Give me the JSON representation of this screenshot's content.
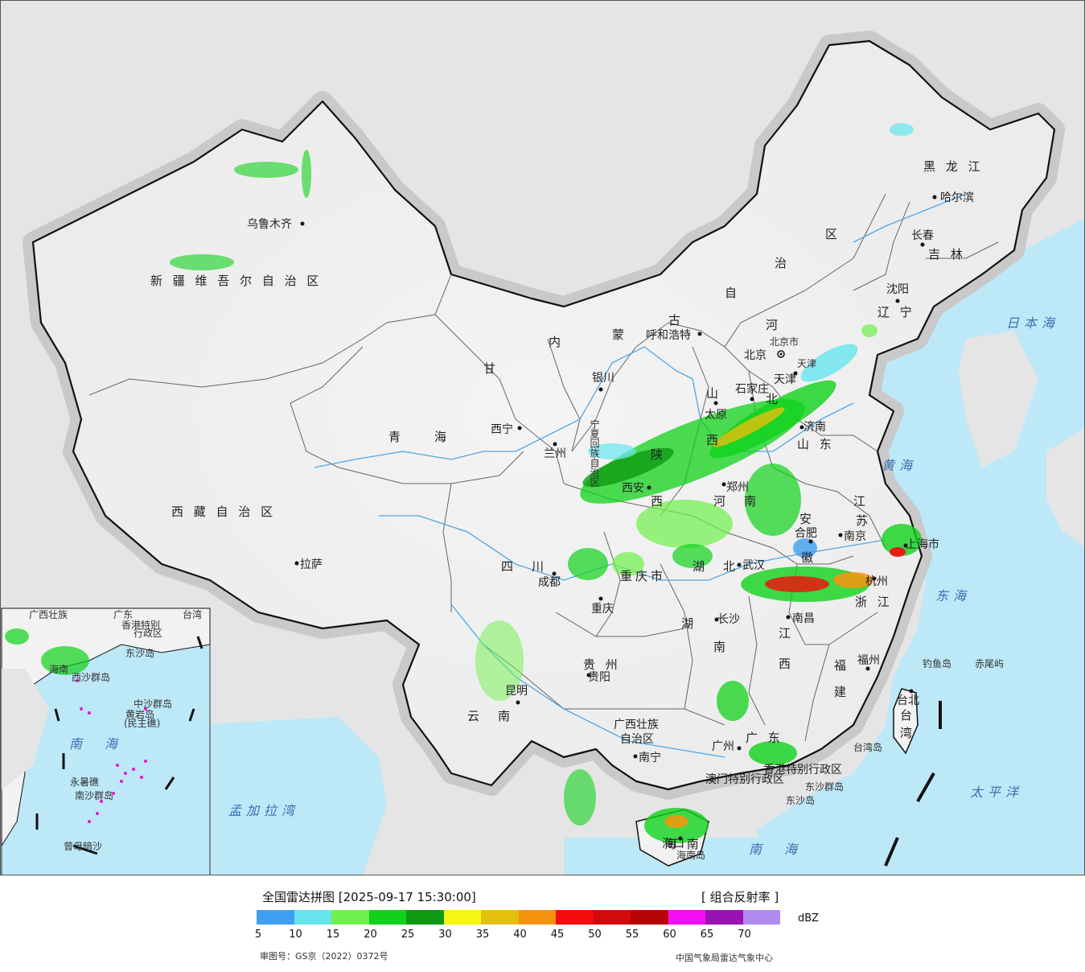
{
  "map": {
    "provinces": {
      "xinjiang": "新 疆 维 吾 尔 自 治 区",
      "xizang": "西 藏 自 治 区",
      "qinghai": "青　　海",
      "gansu": "甘",
      "neimenggu_1": "内",
      "neimenggu_2": "蒙",
      "neimenggu_3": "古",
      "neimenggu_4": "自",
      "neimenggu_5": "治",
      "neimenggu_6": "区",
      "heilongjiang": "黑 龙 江",
      "jilin": "吉 林",
      "liaoning": "辽 宁",
      "hebei_1": "河",
      "hebei_2": "北",
      "shanxi_1": "山",
      "shanxi_2": "西",
      "shandong": "山 东",
      "henan_1": "河",
      "henan_2": "南",
      "shaanxi_1": "陕",
      "shaanxi_2": "西",
      "ningxia": "宁夏回族自治区",
      "sichuan": "四　川",
      "chongqing": "重庆市",
      "hubei": "湖　北",
      "hunan_1": "湖",
      "hunan_2": "南",
      "anhui_1": "安",
      "anhui_2": "徽",
      "jiangsu_1": "江",
      "jiangsu_2": "苏",
      "zhejiang": "浙 江",
      "jiangxi_1": "江",
      "jiangxi_2": "西",
      "fujian_1": "福",
      "fujian_2": "建",
      "guizhou": "贵 州",
      "yunnan": "云　南",
      "guangxi_1": "广西壮族",
      "guangxi_2": "自治区",
      "guangdong": "广 东",
      "hainan": "海 南",
      "taiwan_1": "台",
      "taiwan_2": "湾",
      "shanghai": "上海市",
      "tianjin": "天津",
      "beijing_city": "北京市",
      "hongkong": "香港特别行政区",
      "macau": "澳门特别行政区"
    },
    "cities": {
      "urumqi": "乌鲁木齐",
      "lhasa": "拉萨",
      "xining": "西宁",
      "lanzhou": "兰州",
      "yinchuan": "银川",
      "hohhot": "呼和浩特",
      "beijing": "北京",
      "tianjin": "天津",
      "shijiazhuang": "石家庄",
      "taiyuan": "太原",
      "jinan": "济南",
      "zhengzhou": "郑州",
      "xian": "西安",
      "chengdu": "成都",
      "chongqing": "重庆",
      "wuhan": "武汉",
      "hefei": "合肥",
      "nanjing": "南京",
      "shanghai": "上海",
      "hangzhou": "杭州",
      "changsha": "长沙",
      "nanchang": "南昌",
      "fuzhou": "福州",
      "guiyang": "贵阳",
      "kunming": "昆明",
      "nanning": "南宁",
      "guangzhou": "广州",
      "haikou": "海口",
      "taipei": "台北",
      "harbin": "哈尔滨",
      "changchun": "长春",
      "shenyang": "沈阳"
    },
    "seas": {
      "japan": "日本海",
      "yellow": "黄海",
      "east": "东海",
      "south": "南　海",
      "pacific": "太平洋",
      "bengal": "孟加拉湾"
    },
    "islands": {
      "diaoyu": "钓鱼岛",
      "chiwei": "赤尾屿",
      "taiwan_island": "台湾岛",
      "dongsha_qundao": "东沙群岛",
      "dongsha_dao": "东沙岛",
      "hainan_dao": "海南岛"
    },
    "inset": {
      "guangxi": "广西壮族",
      "guangdong": "广东",
      "taiwan": "台湾",
      "hongkong": "香港特别",
      "hk2": "行政区",
      "dongsha": "东沙岛",
      "xisha": "西沙群岛",
      "zhongsha": "中沙群岛",
      "huangyan": "黄岩岛",
      "minzhu": "(民主礁)",
      "nanhai": "南　海",
      "yongshu": "永暑礁",
      "nansha": "南沙群岛",
      "zengmu": "曾母暗沙",
      "hainan": "海南"
    }
  },
  "legend": {
    "title": "全国雷达拼图 [2025-09-17 15:30:00]",
    "type": "[ 组合反射率 ]",
    "unit": "dBZ",
    "approval": "审图号：GS京（2022）0372号",
    "source": "中国气象局雷达气象中心",
    "ticks": [
      "5",
      "10",
      "15",
      "20",
      "25",
      "30",
      "35",
      "40",
      "45",
      "50",
      "55",
      "60",
      "65",
      "70"
    ],
    "colors": [
      "#3f9ff0",
      "#66e5ee",
      "#6ef14a",
      "#10d21a",
      "#0e9a12",
      "#f6f615",
      "#e4c00b",
      "#f7940e",
      "#f40b0b",
      "#d30a0a",
      "#b70505",
      "#f30ef3",
      "#9a12b3",
      "#b18aef"
    ]
  }
}
